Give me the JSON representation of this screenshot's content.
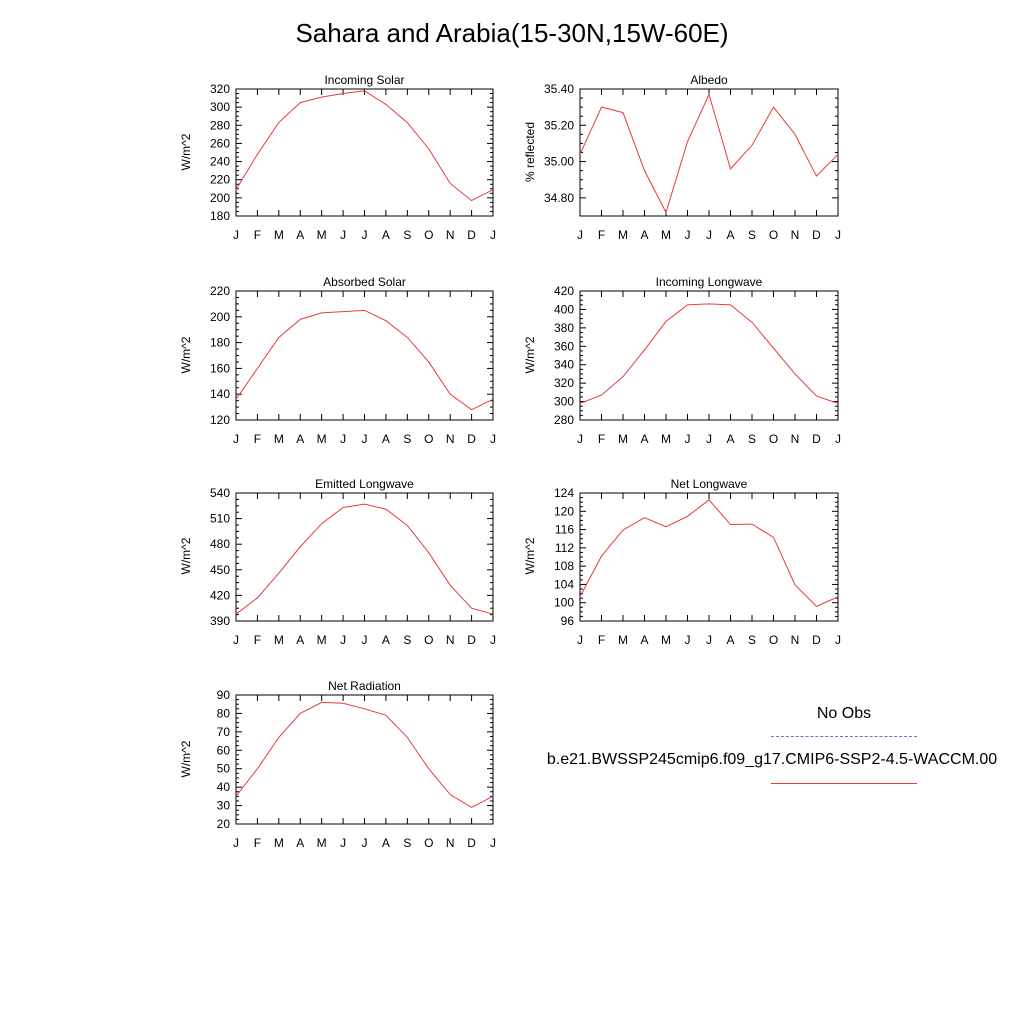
{
  "title": "Sahara and Arabia(15-30N,15W-60E)",
  "legend": {
    "obs_label": "No Obs",
    "model_label": "b.e21.BWSSP245cmip6.f09_g17.CMIP6-SSP2-4.5-WACCM.00",
    "obs_color": "#6a6adf",
    "model_color": "#e83b3b"
  },
  "chart_data": [
    {
      "type": "line",
      "title": "Incoming Solar",
      "ylabel": "W/m^2",
      "categories": [
        "J",
        "F",
        "M",
        "A",
        "M",
        "J",
        "J",
        "A",
        "S",
        "O",
        "N",
        "D",
        "J"
      ],
      "ylim": [
        180,
        320
      ],
      "yticks": [
        "180",
        "200",
        "220",
        "240",
        "260",
        "280",
        "300",
        "320"
      ],
      "series": [
        {
          "values": [
            209,
            248,
            283,
            305,
            311,
            315,
            318,
            303,
            283,
            254,
            216,
            197,
            209
          ]
        }
      ]
    },
    {
      "type": "line",
      "title": "Albedo",
      "ylabel": "% reflected",
      "categories": [
        "J",
        "F",
        "M",
        "A",
        "M",
        "J",
        "J",
        "A",
        "S",
        "O",
        "N",
        "D",
        "J"
      ],
      "ylim": [
        34.7,
        35.4
      ],
      "yticks": [
        "34.80",
        "35.00",
        "35.20",
        "35.40"
      ],
      "series": [
        {
          "values": [
            35.04,
            35.3,
            35.27,
            34.95,
            34.72,
            35.11,
            35.37,
            34.96,
            35.09,
            35.3,
            35.15,
            34.92,
            35.04
          ]
        }
      ]
    },
    {
      "type": "line",
      "title": "Absorbed Solar",
      "ylabel": "W/m^2",
      "categories": [
        "J",
        "F",
        "M",
        "A",
        "M",
        "J",
        "J",
        "A",
        "S",
        "O",
        "N",
        "D",
        "J"
      ],
      "ylim": [
        120,
        220
      ],
      "yticks": [
        "120",
        "140",
        "160",
        "180",
        "200",
        "220"
      ],
      "series": [
        {
          "values": [
            136,
            160,
            184,
            198,
            203,
            204,
            205,
            197,
            184,
            165,
            140,
            128,
            136
          ]
        }
      ]
    },
    {
      "type": "line",
      "title": "Incoming Longwave",
      "ylabel": "W/m^2",
      "categories": [
        "J",
        "F",
        "M",
        "A",
        "M",
        "J",
        "J",
        "A",
        "S",
        "O",
        "N",
        "D",
        "J"
      ],
      "ylim": [
        280,
        420
      ],
      "yticks": [
        "280",
        "300",
        "320",
        "340",
        "360",
        "380",
        "400",
        "420"
      ],
      "series": [
        {
          "values": [
            298,
            307,
            327,
            356,
            387,
            405,
            406,
            405,
            386,
            358,
            330,
            306,
            298
          ]
        }
      ]
    },
    {
      "type": "line",
      "title": "Emitted Longwave",
      "ylabel": "W/m^2",
      "categories": [
        "J",
        "F",
        "M",
        "A",
        "M",
        "J",
        "J",
        "A",
        "S",
        "O",
        "N",
        "D",
        "J"
      ],
      "ylim": [
        390,
        540
      ],
      "yticks": [
        "390",
        "420",
        "450",
        "480",
        "510",
        "540"
      ],
      "series": [
        {
          "values": [
            398,
            417,
            446,
            477,
            504,
            523,
            527,
            521,
            502,
            470,
            432,
            405,
            398
          ]
        }
      ]
    },
    {
      "type": "line",
      "title": "Net Longwave",
      "ylabel": "W/m^2",
      "categories": [
        "J",
        "F",
        "M",
        "A",
        "M",
        "J",
        "J",
        "A",
        "S",
        "O",
        "N",
        "D",
        "J"
      ],
      "ylim": [
        96,
        124
      ],
      "yticks": [
        "96",
        "100",
        "104",
        "108",
        "112",
        "116",
        "120",
        "124"
      ],
      "series": [
        {
          "values": [
            101.3,
            110.2,
            115.9,
            118.6,
            116.6,
            118.9,
            122.5,
            117.1,
            117.2,
            114.3,
            103.9,
            99.2,
            101.3
          ]
        }
      ]
    },
    {
      "type": "line",
      "title": "Net Radiation",
      "ylabel": "W/m^2",
      "categories": [
        "J",
        "F",
        "M",
        "A",
        "M",
        "J",
        "J",
        "A",
        "S",
        "O",
        "N",
        "D",
        "J"
      ],
      "ylim": [
        20,
        90
      ],
      "yticks": [
        "20",
        "30",
        "40",
        "50",
        "60",
        "70",
        "80",
        "90"
      ],
      "series": [
        {
          "values": [
            35,
            50,
            67,
            80,
            86,
            85.5,
            82.5,
            79,
            67,
            50,
            36,
            29,
            35
          ]
        }
      ]
    }
  ]
}
